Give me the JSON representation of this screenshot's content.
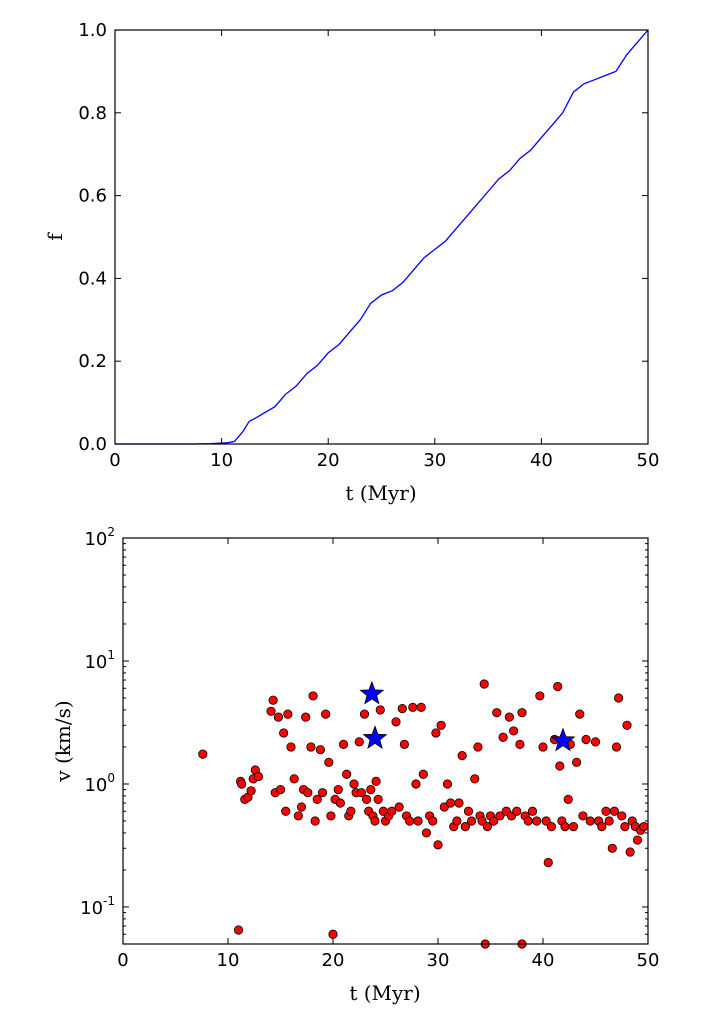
{
  "colors": {
    "line": "#0000ff",
    "scatter_fill": "#ff0000",
    "scatter_edge": "#000000",
    "star": "#0000ff"
  },
  "chart_data": [
    {
      "type": "line",
      "xlabel": "t (Myr)",
      "ylabel": "f",
      "xlim": [
        0,
        50
      ],
      "ylim": [
        0,
        1
      ],
      "xticks": [
        "0",
        "10",
        "20",
        "30",
        "40",
        "50"
      ],
      "yticks": [
        "0.0",
        "0.2",
        "0.4",
        "0.6",
        "0.8",
        "1.0"
      ],
      "grid": false,
      "series": [
        {
          "x": [
            0,
            7.5,
            9.0,
            10.5,
            11.2,
            12.0,
            12.6,
            13.0,
            14.0,
            15.0,
            16.0,
            17.0,
            18.0,
            19.0,
            20.0,
            21.0,
            22.0,
            23.0,
            24.0,
            25.0,
            26.0,
            27.0,
            28.0,
            29.0,
            30.0,
            31.0,
            32.0,
            33.0,
            34.0,
            35.0,
            36.0,
            37.0,
            38.0,
            39.0,
            40.0,
            41.0,
            42.0,
            43.0,
            44.0,
            45.0,
            46.0,
            47.0,
            48.0,
            49.0,
            50.0
          ],
          "y": [
            0,
            0.0,
            0.001,
            0.003,
            0.006,
            0.03,
            0.055,
            0.06,
            0.075,
            0.09,
            0.12,
            0.14,
            0.17,
            0.19,
            0.22,
            0.24,
            0.27,
            0.3,
            0.34,
            0.36,
            0.37,
            0.39,
            0.42,
            0.45,
            0.47,
            0.49,
            0.52,
            0.55,
            0.58,
            0.61,
            0.64,
            0.66,
            0.69,
            0.71,
            0.74,
            0.77,
            0.8,
            0.85,
            0.87,
            0.88,
            0.89,
            0.9,
            0.94,
            0.97,
            1.0
          ]
        }
      ]
    },
    {
      "type": "scatter",
      "xlabel": "t (Myr)",
      "ylabel": "v (km/s)",
      "xlim": [
        0,
        50
      ],
      "ylim": [
        0.05,
        100
      ],
      "yscale": "log",
      "xticks": [
        "0",
        "10",
        "20",
        "30",
        "40",
        "50"
      ],
      "yticks": [
        {
          "base": "10",
          "exp": "-1",
          "value": 0.1
        },
        {
          "base": "10",
          "exp": "0",
          "value": 1
        },
        {
          "base": "10",
          "exp": "1",
          "value": 10
        },
        {
          "base": "10",
          "exp": "2",
          "value": 100
        }
      ],
      "grid": false,
      "series": [
        {
          "marker": "circle",
          "points": [
            [
              7.6,
              1.75
            ],
            [
              11,
              0.065
            ],
            [
              11.2,
              1.05
            ],
            [
              11.3,
              1.0
            ],
            [
              11.6,
              0.75
            ],
            [
              11.9,
              0.78
            ],
            [
              12.2,
              0.88
            ],
            [
              12.4,
              1.1
            ],
            [
              12.6,
              1.3
            ],
            [
              12.9,
              1.15
            ],
            [
              14.1,
              3.9
            ],
            [
              14.3,
              4.8
            ],
            [
              14.5,
              0.85
            ],
            [
              14.8,
              3.5
            ],
            [
              15.0,
              0.9
            ],
            [
              15.3,
              2.6
            ],
            [
              15.5,
              0.6
            ],
            [
              15.7,
              3.7
            ],
            [
              16.0,
              2.0
            ],
            [
              16.3,
              1.1
            ],
            [
              16.7,
              0.55
            ],
            [
              17.0,
              0.65
            ],
            [
              17.2,
              0.9
            ],
            [
              17.4,
              3.5
            ],
            [
              17.6,
              0.85
            ],
            [
              17.9,
              2.0
            ],
            [
              18.1,
              5.2
            ],
            [
              18.3,
              0.5
            ],
            [
              18.5,
              0.75
            ],
            [
              18.8,
              1.9
            ],
            [
              19.0,
              0.85
            ],
            [
              19.3,
              3.7
            ],
            [
              19.6,
              1.5
            ],
            [
              19.8,
              0.55
            ],
            [
              20.0,
              0.06
            ],
            [
              20.2,
              0.75
            ],
            [
              20.5,
              0.9
            ],
            [
              20.7,
              0.7
            ],
            [
              21.0,
              2.1
            ],
            [
              21.3,
              1.2
            ],
            [
              21.5,
              0.55
            ],
            [
              21.7,
              0.6
            ],
            [
              22.0,
              1.0
            ],
            [
              22.2,
              0.85
            ],
            [
              22.5,
              2.2
            ],
            [
              22.7,
              0.85
            ],
            [
              23.0,
              3.7
            ],
            [
              23.2,
              0.75
            ],
            [
              23.4,
              0.6
            ],
            [
              23.6,
              0.9
            ],
            [
              23.8,
              0.55
            ],
            [
              24.0,
              0.5
            ],
            [
              24.1,
              1.05
            ],
            [
              24.3,
              0.75
            ],
            [
              24.5,
              4.0
            ],
            [
              24.8,
              0.6
            ],
            [
              25.0,
              0.5
            ],
            [
              25.3,
              0.55
            ],
            [
              25.6,
              0.6
            ],
            [
              26.0,
              3.2
            ],
            [
              26.3,
              0.65
            ],
            [
              26.6,
              4.1
            ],
            [
              26.8,
              2.1
            ],
            [
              27.0,
              0.55
            ],
            [
              27.3,
              0.5
            ],
            [
              27.6,
              4.2
            ],
            [
              27.9,
              1.0
            ],
            [
              28.1,
              0.5
            ],
            [
              28.4,
              4.2
            ],
            [
              28.6,
              1.2
            ],
            [
              28.9,
              0.4
            ],
            [
              29.2,
              0.55
            ],
            [
              29.5,
              0.5
            ],
            [
              29.8,
              2.6
            ],
            [
              30.0,
              0.32
            ],
            [
              30.3,
              3.0
            ],
            [
              30.6,
              0.65
            ],
            [
              30.9,
              1.0
            ],
            [
              31.2,
              0.7
            ],
            [
              31.5,
              0.45
            ],
            [
              31.8,
              0.5
            ],
            [
              32.0,
              0.7
            ],
            [
              32.3,
              1.7
            ],
            [
              32.6,
              0.45
            ],
            [
              32.9,
              0.6
            ],
            [
              33.2,
              0.5
            ],
            [
              33.5,
              1.1
            ],
            [
              33.8,
              2.0
            ],
            [
              34.0,
              0.55
            ],
            [
              34.2,
              0.5
            ],
            [
              34.4,
              6.5
            ],
            [
              34.5,
              0.05
            ],
            [
              34.7,
              0.45
            ],
            [
              35.0,
              0.55
            ],
            [
              35.3,
              0.5
            ],
            [
              35.6,
              3.8
            ],
            [
              35.9,
              0.55
            ],
            [
              36.2,
              2.4
            ],
            [
              36.5,
              0.6
            ],
            [
              36.8,
              3.5
            ],
            [
              37.0,
              0.55
            ],
            [
              37.2,
              2.7
            ],
            [
              37.5,
              0.6
            ],
            [
              37.8,
              2.1
            ],
            [
              38.0,
              0.05
            ],
            [
              38.0,
              3.8
            ],
            [
              38.3,
              0.55
            ],
            [
              38.6,
              0.5
            ],
            [
              39.0,
              0.6
            ],
            [
              39.4,
              0.5
            ],
            [
              39.7,
              5.2
            ],
            [
              40.0,
              2.0
            ],
            [
              40.3,
              0.5
            ],
            [
              40.5,
              0.23
            ],
            [
              40.8,
              0.45
            ],
            [
              41.1,
              2.3
            ],
            [
              41.4,
              6.2
            ],
            [
              41.6,
              1.4
            ],
            [
              41.8,
              0.5
            ],
            [
              42.1,
              0.45
            ],
            [
              42.4,
              0.75
            ],
            [
              42.6,
              2.1
            ],
            [
              42.9,
              0.45
            ],
            [
              43.2,
              1.5
            ],
            [
              43.5,
              3.7
            ],
            [
              43.8,
              0.55
            ],
            [
              44.1,
              2.3
            ],
            [
              44.5,
              0.5
            ],
            [
              45.0,
              2.2
            ],
            [
              45.3,
              0.5
            ],
            [
              45.6,
              0.45
            ],
            [
              46.0,
              0.6
            ],
            [
              46.3,
              0.5
            ],
            [
              46.6,
              0.3
            ],
            [
              46.8,
              0.6
            ],
            [
              47.0,
              2.0
            ],
            [
              47.2,
              5.0
            ],
            [
              47.5,
              0.55
            ],
            [
              47.8,
              0.45
            ],
            [
              48.0,
              3.0
            ],
            [
              48.3,
              0.28
            ],
            [
              48.5,
              0.5
            ],
            [
              48.8,
              0.45
            ],
            [
              49.0,
              0.35
            ],
            [
              49.3,
              0.42
            ],
            [
              49.6,
              0.45
            ]
          ]
        },
        {
          "marker": "star",
          "points": [
            [
              23.7,
              5.4
            ],
            [
              24.0,
              2.35
            ],
            [
              41.9,
              2.25
            ]
          ]
        }
      ]
    }
  ]
}
